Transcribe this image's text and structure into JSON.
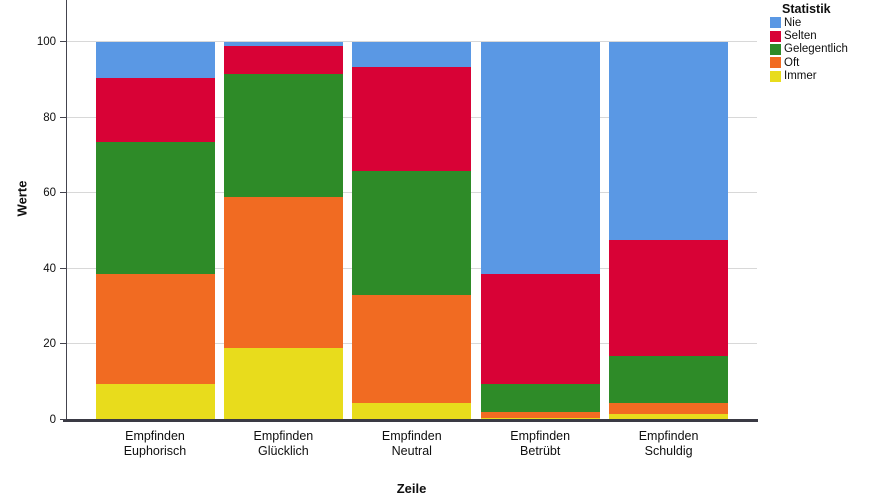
{
  "chart_data": {
    "type": "bar",
    "variant": "stacked-percent",
    "title": "",
    "xlabel": "Zeile",
    "ylabel": "Werte",
    "ylim": [
      0,
      111
    ],
    "yticks": [
      0,
      20,
      40,
      60,
      80,
      100
    ],
    "grid": "horizontal",
    "legend_title": "Statistik",
    "legend_position": "top-right",
    "legend_order": [
      "Nie",
      "Selten",
      "Gelegentlich",
      "Oft",
      "Immer"
    ],
    "categories": [
      "Empfinden Euphorisch",
      "Empfinden Glücklich",
      "Empfinden Neutral",
      "Empfinden Betrübt",
      "Empfinden Schuldig"
    ],
    "series": [
      {
        "name": "Immer",
        "color": "#E8DC1C",
        "values": [
          9.5,
          19,
          4.5,
          0.5,
          1.5
        ]
      },
      {
        "name": "Oft",
        "color": "#F16B22",
        "values": [
          29,
          40,
          28.5,
          1.5,
          3
        ]
      },
      {
        "name": "Gelegentlich",
        "color": "#2E8B28",
        "values": [
          35,
          32.5,
          33,
          7.5,
          12.5
        ]
      },
      {
        "name": "Selten",
        "color": "#D80236",
        "values": [
          17,
          7.5,
          27.5,
          29,
          30.5
        ]
      },
      {
        "name": "Nie",
        "color": "#5A98E4",
        "values": [
          9.5,
          1,
          6.5,
          61.5,
          52.5
        ]
      }
    ]
  },
  "colors": {
    "grid": "#D8D8D8",
    "axis_line": "#3A3A44",
    "text": "#0F0F0F"
  }
}
